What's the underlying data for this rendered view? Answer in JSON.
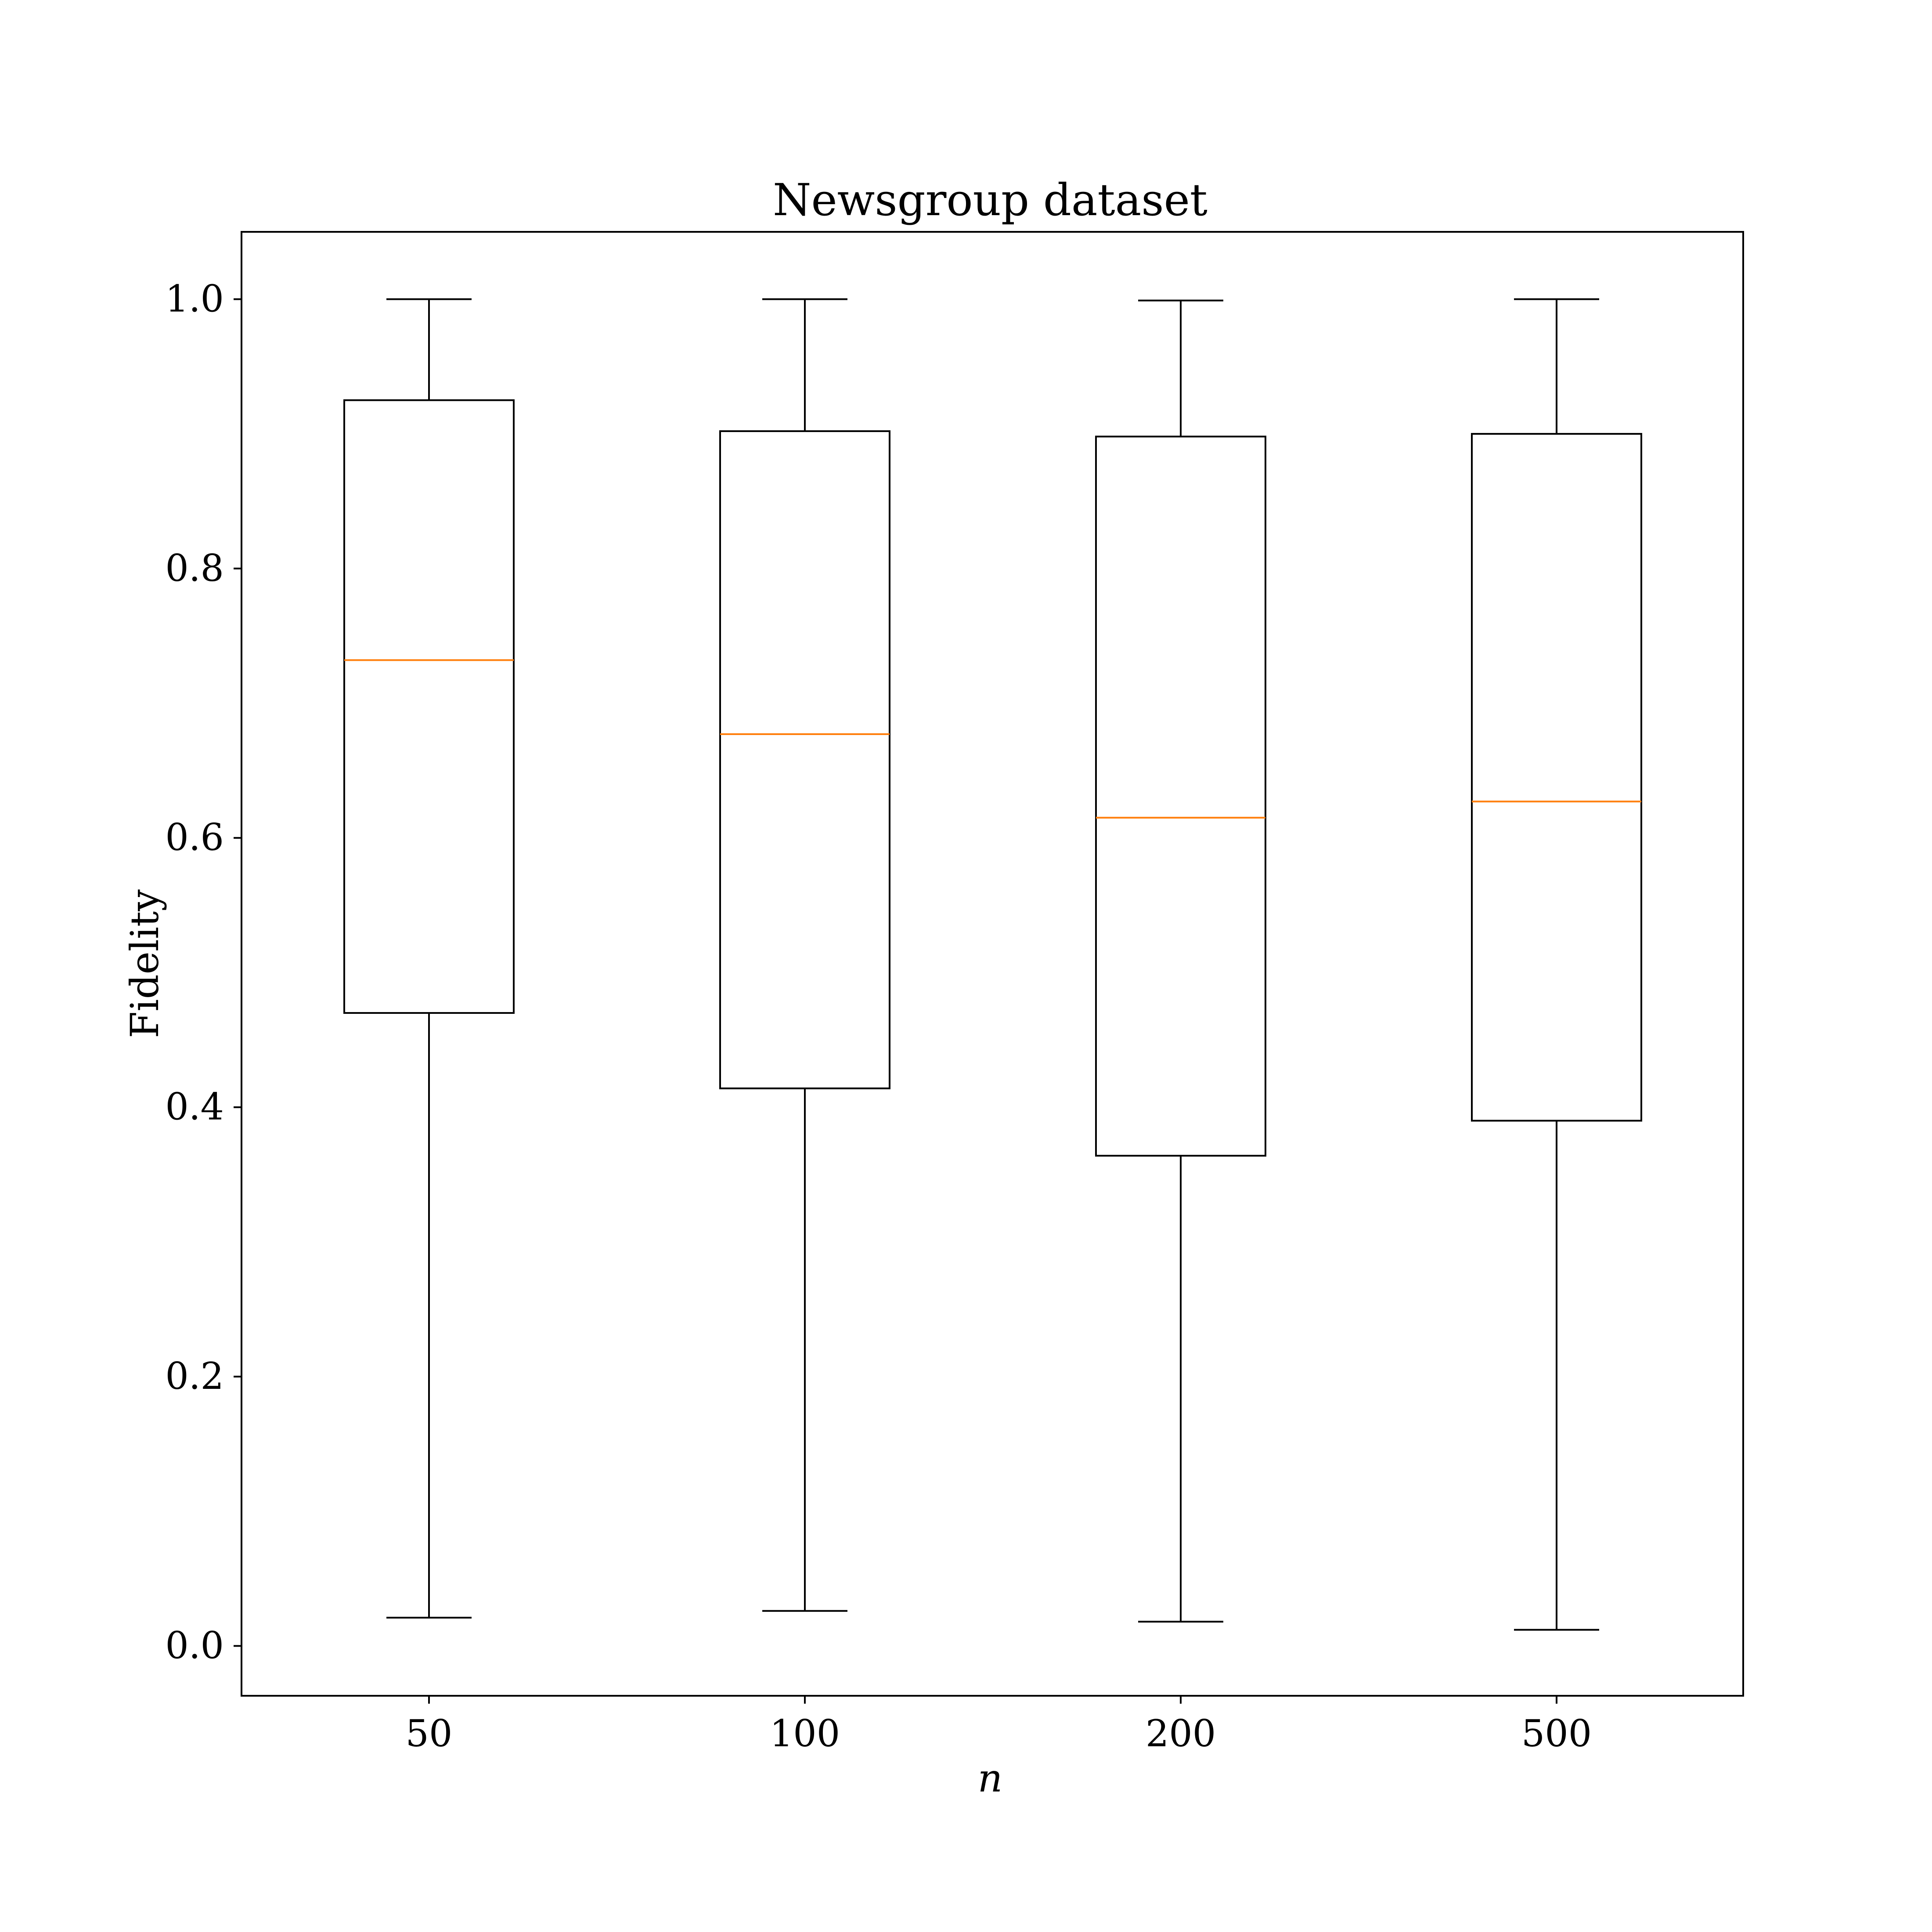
{
  "chart_data": {
    "type": "box",
    "title": "Newsgroup dataset",
    "xlabel": "n",
    "ylabel": "Fidelity",
    "categories": [
      "50",
      "100",
      "200",
      "500"
    ],
    "ylim": [
      -0.037,
      1.05
    ],
    "yticks": [
      0.0,
      0.2,
      0.4,
      0.6,
      0.8,
      1.0
    ],
    "ytick_labels": [
      "0.0",
      "0.2",
      "0.4",
      "0.6",
      "0.8",
      "1.0"
    ],
    "boxes": [
      {
        "category": "50",
        "whisker_low": 0.021,
        "q1": 0.47,
        "median": 0.732,
        "q3": 0.925,
        "whisker_high": 1.0
      },
      {
        "category": "100",
        "whisker_low": 0.026,
        "q1": 0.414,
        "median": 0.677,
        "q3": 0.902,
        "whisker_high": 1.0
      },
      {
        "category": "200",
        "whisker_low": 0.018,
        "q1": 0.364,
        "median": 0.615,
        "q3": 0.898,
        "whisker_high": 0.999
      },
      {
        "category": "500",
        "whisker_low": 0.012,
        "q1": 0.39,
        "median": 0.627,
        "q3": 0.9,
        "whisker_high": 1.0
      }
    ],
    "grid": false,
    "box_color": "#000000",
    "median_color": "#ff7f0e"
  }
}
